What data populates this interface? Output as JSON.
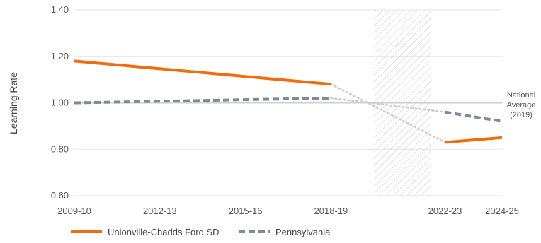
{
  "chart_data": {
    "type": "line",
    "title": "",
    "xlabel": "",
    "ylabel": "Learning Rate",
    "ylim": [
      0.6,
      1.4
    ],
    "yticks": [
      "0.60",
      "0.80",
      "1.00",
      "1.20",
      "1.40"
    ],
    "x_tick_labels": [
      "2009-10",
      "2012-13",
      "2015-16",
      "2018-19",
      "2022-23",
      "2024-25"
    ],
    "x_tick_years": [
      2009,
      2012,
      2015,
      2018,
      2022,
      2024
    ],
    "gap_years": [
      2019.5,
      2021.5
    ],
    "grid": "horizontal",
    "legend_position": "bottom-left",
    "reference_line": {
      "value": 1.0,
      "label_lines": [
        "National",
        "Average",
        "(2019)"
      ]
    },
    "series": [
      {
        "name": "Unionville-Chadds Ford SD",
        "color": "#F26B0F",
        "style": "solid",
        "segments": [
          [
            [
              2009,
              1.18
            ],
            [
              2018,
              1.08
            ]
          ],
          [
            [
              2022,
              0.83
            ],
            [
              2024,
              0.85
            ]
          ]
        ],
        "bridge": [
          [
            2018,
            1.08
          ],
          [
            2022,
            0.83
          ]
        ]
      },
      {
        "name": "Pennsylvania",
        "color": "#7D8B99",
        "style": "dashed",
        "segments": [
          [
            [
              2009,
              1.0
            ],
            [
              2018,
              1.02
            ]
          ],
          [
            [
              2022,
              0.96
            ],
            [
              2024,
              0.92
            ]
          ]
        ],
        "bridge": [
          [
            2018,
            1.02
          ],
          [
            2022,
            0.96
          ]
        ]
      }
    ]
  }
}
